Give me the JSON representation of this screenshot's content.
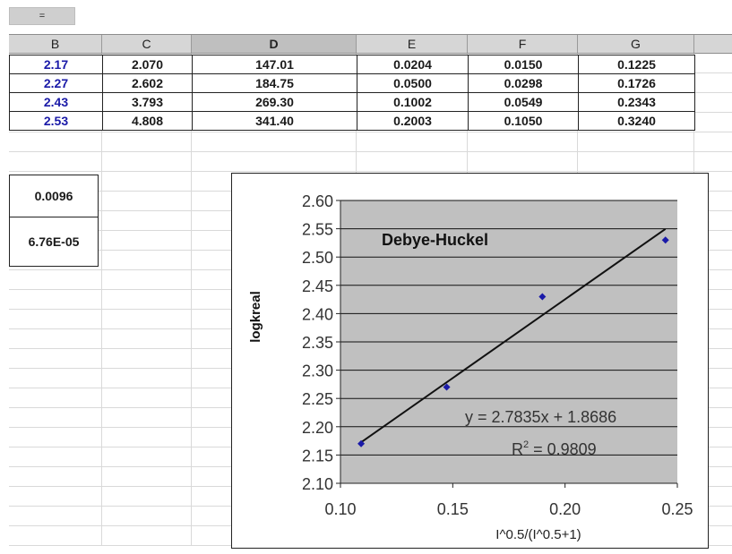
{
  "name_box": {
    "value": "="
  },
  "columns": [
    "B",
    "C",
    "D",
    "E",
    "F",
    "G"
  ],
  "selected_column": "D",
  "rows": [
    [
      "2.17",
      "2.070",
      "147.01",
      "0.0204",
      "0.0150",
      "0.1225"
    ],
    [
      "2.27",
      "2.602",
      "184.75",
      "0.0500",
      "0.0298",
      "0.1726"
    ],
    [
      "2.43",
      "3.793",
      "269.30",
      "0.1002",
      "0.0549",
      "0.2343"
    ],
    [
      "2.53",
      "4.808",
      "341.40",
      "0.2003",
      "0.1050",
      "0.3240"
    ]
  ],
  "calc_values": [
    "0.0096",
    "6.76E-05"
  ],
  "colors": {
    "plot_background": "#c0c0c0",
    "marker": "#1a1aa8",
    "blue_text": "#1a1aa8"
  },
  "chart_data": {
    "type": "scatter",
    "title": "Debye-Huckel",
    "xlabel": "I^0.5/(I^0.5+1)",
    "ylabel": "logkreal",
    "xlim": [
      0.1,
      0.25
    ],
    "ylim": [
      2.1,
      2.6
    ],
    "xticks": [
      "0.10",
      "0.15",
      "0.20",
      "0.25"
    ],
    "yticks": [
      "2.10",
      "2.15",
      "2.20",
      "2.25",
      "2.30",
      "2.35",
      "2.40",
      "2.45",
      "2.50",
      "2.55",
      "2.60"
    ],
    "grid": "horizontal",
    "series": [
      {
        "x": [
          0.1092,
          0.1473,
          0.1899,
          0.2447
        ],
        "y": [
          2.17,
          2.27,
          2.43,
          2.53
        ]
      }
    ],
    "trendline": {
      "slope": 2.7835,
      "intercept": 1.8686,
      "x_range": [
        0.1092,
        0.2447
      ]
    },
    "equation": "y = 2.7835x + 1.8686",
    "r2_label": "R",
    "r2_sup": "2",
    "r2_value": " = 0.9809"
  }
}
